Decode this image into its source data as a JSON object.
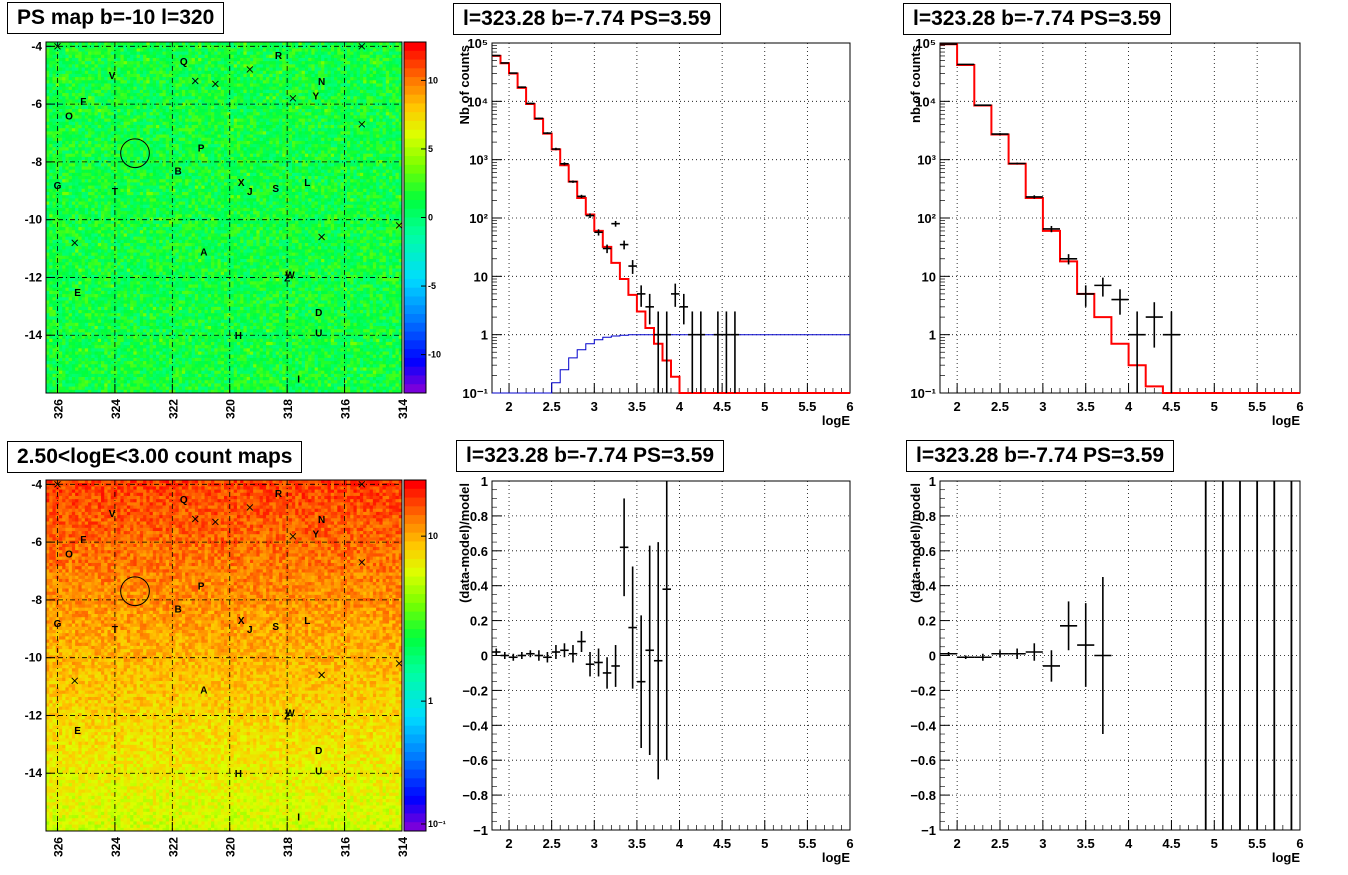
{
  "maps": [
    {
      "title": "PS map b=-10 l=320",
      "x_ticks": [
        "326",
        "324",
        "322",
        "320",
        "318",
        "316",
        "314"
      ],
      "y_ticks": [
        "-4",
        "-6",
        "-8",
        "-10",
        "-12",
        "-14"
      ],
      "colorbar_ticks": [
        "10",
        "5",
        "0",
        "-5",
        "-10"
      ],
      "colorscale": "linear",
      "gradient": "vertical-fade-none"
    },
    {
      "title": "2.50<logE<3.00 count maps",
      "x_ticks": [
        "326",
        "324",
        "322",
        "320",
        "318",
        "316",
        "314"
      ],
      "y_ticks": [
        "-4",
        "-6",
        "-8",
        "-10",
        "-12",
        "-14"
      ],
      "colorbar_ticks": [
        "10",
        "1",
        "10⁻¹"
      ],
      "colorscale": "log",
      "gradient": "counts-decreasing-with-latitude"
    }
  ],
  "sources": [
    {
      "label": "Q",
      "l": 321.6,
      "b": -4.5
    },
    {
      "label": "R",
      "l": 318.3,
      "b": -4.3
    },
    {
      "label": "V",
      "l": 324.1,
      "b": -5.0
    },
    {
      "label": "N",
      "l": 316.8,
      "b": -5.2
    },
    {
      "label": "F",
      "l": 325.1,
      "b": -5.9
    },
    {
      "label": "Y",
      "l": 317.0,
      "b": -5.7
    },
    {
      "label": "O",
      "l": 325.6,
      "b": -6.4
    },
    {
      "label": "P",
      "l": 321.0,
      "b": -7.5
    },
    {
      "label": "B",
      "l": 321.8,
      "b": -8.3
    },
    {
      "label": "X",
      "l": 319.6,
      "b": -8.7
    },
    {
      "label": "J",
      "l": 319.3,
      "b": -9.0
    },
    {
      "label": "S",
      "l": 318.4,
      "b": -8.9
    },
    {
      "label": "L",
      "l": 317.3,
      "b": -8.7
    },
    {
      "label": "G",
      "l": 326.0,
      "b": -8.8
    },
    {
      "label": "T",
      "l": 324.0,
      "b": -9.0
    },
    {
      "label": "A",
      "l": 320.9,
      "b": -11.1
    },
    {
      "label": "W",
      "l": 317.9,
      "b": -11.9
    },
    {
      "label": "Z",
      "l": 318.0,
      "b": -12.0
    },
    {
      "label": "E",
      "l": 325.3,
      "b": -12.5
    },
    {
      "label": "D",
      "l": 316.9,
      "b": -13.2
    },
    {
      "label": "H",
      "l": 319.7,
      "b": -14.0
    },
    {
      "label": "U",
      "l": 316.9,
      "b": -13.9
    },
    {
      "label": "I",
      "l": 317.6,
      "b": -15.5
    }
  ],
  "crosses": [
    {
      "l": 326.0,
      "b": -4.0
    },
    {
      "l": 315.4,
      "b": -4.0
    },
    {
      "l": 321.2,
      "b": -5.2
    },
    {
      "l": 320.5,
      "b": -5.3
    },
    {
      "l": 319.3,
      "b": -4.8
    },
    {
      "l": 317.8,
      "b": -5.8
    },
    {
      "l": 315.4,
      "b": -6.7
    },
    {
      "l": 314.1,
      "b": -10.2
    },
    {
      "l": 325.4,
      "b": -10.8
    },
    {
      "l": 316.8,
      "b": -10.6
    }
  ],
  "circle": {
    "l": 323.3,
    "b": -7.7,
    "r_deg": 0.5
  },
  "spectra": [
    {
      "title": "l=323.28 b=-7.74 PS=3.59",
      "ylabel": "Nb of counts",
      "xlabel": "logE",
      "x_ticks": [
        "2",
        "2.5",
        "3",
        "3.5",
        "4",
        "4.5",
        "5",
        "5.5",
        "6"
      ],
      "y_ticks": [
        "10⁻¹",
        "1",
        "10",
        "10²",
        "10³",
        "10⁴",
        "10⁵"
      ],
      "xlim": [
        1.8,
        6
      ],
      "ylim_log": [
        0.1,
        100000
      ],
      "bin_width": 0.1,
      "bin_start": 1.8,
      "model_red": [
        60000,
        45000,
        30000,
        17000,
        9000,
        5000,
        2800,
        1500,
        800,
        420,
        220,
        115,
        60,
        32,
        17,
        9,
        4.8,
        2.5,
        1.3,
        0.7,
        0.36,
        0.19,
        0.1,
        0.1,
        0.1,
        0.1,
        0.1,
        0.1,
        0.1,
        0.1,
        0.1,
        0.1,
        0.1,
        0.1,
        0.1,
        0.1,
        0.1,
        0.1,
        0.1,
        0.1,
        0.1,
        0.1
      ],
      "model_blue": [
        0.1,
        0.1,
        0.1,
        0.1,
        0.1,
        0.1,
        0.1,
        0.15,
        0.25,
        0.4,
        0.55,
        0.7,
        0.82,
        0.9,
        0.95,
        0.98,
        1,
        1,
        1,
        1,
        1,
        1,
        1,
        1,
        1,
        1,
        1,
        1,
        1,
        1,
        1,
        1,
        1,
        1,
        1,
        1,
        1,
        1,
        1,
        1,
        1,
        1
      ],
      "data": [
        {
          "x": 1.85,
          "y": 61000,
          "lo": 60000,
          "hi": 62000
        },
        {
          "x": 1.95,
          "y": 45500,
          "lo": 45000,
          "hi": 46000
        },
        {
          "x": 2.05,
          "y": 30500,
          "lo": 30000,
          "hi": 31000
        },
        {
          "x": 2.15,
          "y": 17500,
          "lo": 17000,
          "hi": 18000
        },
        {
          "x": 2.25,
          "y": 9200,
          "lo": 9000,
          "hi": 9400
        },
        {
          "x": 2.35,
          "y": 5100,
          "lo": 4950,
          "hi": 5250
        },
        {
          "x": 2.45,
          "y": 2850,
          "lo": 2750,
          "hi": 2950
        },
        {
          "x": 2.55,
          "y": 1520,
          "lo": 1450,
          "hi": 1600
        },
        {
          "x": 2.65,
          "y": 850,
          "lo": 800,
          "hi": 900
        },
        {
          "x": 2.75,
          "y": 420,
          "lo": 400,
          "hi": 440
        },
        {
          "x": 2.85,
          "y": 235,
          "lo": 220,
          "hi": 250
        },
        {
          "x": 2.95,
          "y": 110,
          "lo": 100,
          "hi": 120
        },
        {
          "x": 3.05,
          "y": 57,
          "lo": 50,
          "hi": 64
        },
        {
          "x": 3.15,
          "y": 30,
          "lo": 25,
          "hi": 35
        },
        {
          "x": 3.25,
          "y": 80,
          "lo": 71,
          "hi": 89
        },
        {
          "x": 3.35,
          "y": 35,
          "lo": 29,
          "hi": 41
        },
        {
          "x": 3.45,
          "y": 15,
          "lo": 11,
          "hi": 19
        },
        {
          "x": 3.55,
          "y": 5,
          "lo": 3,
          "hi": 7
        },
        {
          "x": 3.65,
          "y": 3,
          "lo": 1.5,
          "hi": 5
        },
        {
          "x": 3.75,
          "y": 1,
          "lo": 0.1,
          "hi": 2.5
        },
        {
          "x": 3.85,
          "y": 1,
          "lo": 0.1,
          "hi": 2.5
        },
        {
          "x": 3.95,
          "y": 5,
          "lo": 3,
          "hi": 7.5
        },
        {
          "x": 4.05,
          "y": 3,
          "lo": 1.5,
          "hi": 5
        },
        {
          "x": 4.15,
          "y": 1,
          "lo": 0.1,
          "hi": 2.5
        },
        {
          "x": 4.25,
          "y": 1,
          "lo": 0.1,
          "hi": 2.5
        },
        {
          "x": 4.45,
          "y": 1,
          "lo": 0.1,
          "hi": 2.5
        },
        {
          "x": 4.55,
          "y": 1,
          "lo": 0.1,
          "hi": 2.5
        },
        {
          "x": 4.65,
          "y": 1,
          "lo": 0.1,
          "hi": 2.5
        }
      ]
    },
    {
      "title": "l=323.28 b=-7.74 PS=3.59",
      "ylabel": "nb of counts",
      "xlabel": "logE",
      "x_ticks": [
        "2",
        "2.5",
        "3",
        "3.5",
        "4",
        "4.5",
        "5",
        "5.5",
        "6"
      ],
      "y_ticks": [
        "10⁻¹",
        "1",
        "10",
        "10²",
        "10³",
        "10⁴",
        "10⁵"
      ],
      "xlim": [
        1.8,
        6
      ],
      "ylim_log": [
        0.1,
        100000
      ],
      "bin_width": 0.2,
      "bin_start": 1.8,
      "model_red": [
        95000,
        42000,
        8500,
        2700,
        850,
        220,
        60,
        18,
        5,
        2,
        0.7,
        0.3,
        0.13,
        0.1,
        0.1,
        0.1,
        0.1,
        0.1,
        0.1,
        0.1,
        0.1
      ],
      "model_blue": [],
      "data": [
        {
          "x": 1.9,
          "y": 96000,
          "lo": 95000,
          "hi": 97000
        },
        {
          "x": 2.1,
          "y": 43000,
          "lo": 42500,
          "hi": 43500
        },
        {
          "x": 2.3,
          "y": 8600,
          "lo": 8400,
          "hi": 8800
        },
        {
          "x": 2.5,
          "y": 2750,
          "lo": 2650,
          "hi": 2850
        },
        {
          "x": 2.7,
          "y": 860,
          "lo": 830,
          "hi": 890
        },
        {
          "x": 2.9,
          "y": 230,
          "lo": 215,
          "hi": 245
        },
        {
          "x": 3.1,
          "y": 65,
          "lo": 57,
          "hi": 73
        },
        {
          "x": 3.3,
          "y": 20,
          "lo": 16,
          "hi": 24
        },
        {
          "x": 3.5,
          "y": 5,
          "lo": 3,
          "hi": 7
        },
        {
          "x": 3.7,
          "y": 7,
          "lo": 4.5,
          "hi": 9.5
        },
        {
          "x": 3.9,
          "y": 4,
          "lo": 2.2,
          "hi": 6
        },
        {
          "x": 4.1,
          "y": 1,
          "lo": 0.1,
          "hi": 2.5
        },
        {
          "x": 4.3,
          "y": 2,
          "lo": 0.6,
          "hi": 3.6
        },
        {
          "x": 4.5,
          "y": 1,
          "lo": 0.1,
          "hi": 2.5
        }
      ]
    }
  ],
  "residuals": [
    {
      "title": "l=323.28 b=-7.74 PS=3.59",
      "ylabel": "(data-model)/model",
      "xlabel": "logE",
      "x_ticks": [
        "2",
        "2.5",
        "3",
        "3.5",
        "4",
        "4.5",
        "5",
        "5.5",
        "6"
      ],
      "y_ticks": [
        "−1",
        "−0.8",
        "−0.6",
        "−0.4",
        "−0.2",
        "0",
        "0.2",
        "0.4",
        "0.6",
        "0.8",
        "1"
      ],
      "xlim": [
        1.8,
        6
      ],
      "ylim": [
        -1,
        1
      ],
      "half_bin": 0.05,
      "points": [
        {
          "x": 1.85,
          "y": 0.02,
          "e": 0.02
        },
        {
          "x": 1.95,
          "y": 0.0,
          "e": 0.02
        },
        {
          "x": 2.05,
          "y": -0.01,
          "e": 0.02
        },
        {
          "x": 2.15,
          "y": 0.0,
          "e": 0.02
        },
        {
          "x": 2.25,
          "y": 0.01,
          "e": 0.02
        },
        {
          "x": 2.35,
          "y": 0.0,
          "e": 0.03
        },
        {
          "x": 2.45,
          "y": -0.01,
          "e": 0.03
        },
        {
          "x": 2.55,
          "y": 0.02,
          "e": 0.04
        },
        {
          "x": 2.65,
          "y": 0.03,
          "e": 0.04
        },
        {
          "x": 2.75,
          "y": 0.01,
          "e": 0.05
        },
        {
          "x": 2.85,
          "y": 0.08,
          "e": 0.06
        },
        {
          "x": 2.95,
          "y": -0.05,
          "e": 0.07
        },
        {
          "x": 3.05,
          "y": -0.04,
          "e": 0.08
        },
        {
          "x": 3.15,
          "y": -0.1,
          "e": 0.09
        },
        {
          "x": 3.25,
          "y": -0.06,
          "e": 0.12
        },
        {
          "x": 3.35,
          "y": 0.62,
          "e": 0.28
        },
        {
          "x": 3.45,
          "y": 0.16,
          "e": 0.35
        },
        {
          "x": 3.55,
          "y": -0.15,
          "e": 0.38
        },
        {
          "x": 3.65,
          "y": 0.03,
          "e": 0.6
        },
        {
          "x": 3.75,
          "y": -0.03,
          "e": 0.68
        },
        {
          "x": 3.85,
          "y": 0.38,
          "e": 0.98
        }
      ]
    },
    {
      "title": "l=323.28 b=-7.74 PS=3.59",
      "ylabel": "(data-model)/model",
      "xlabel": "logE",
      "x_ticks": [
        "2",
        "2.5",
        "3",
        "3.5",
        "4",
        "4.5",
        "5",
        "5.5",
        "6"
      ],
      "y_ticks": [
        "−1",
        "−0.8",
        "−0.6",
        "−0.4",
        "−0.2",
        "0",
        "0.2",
        "0.4",
        "0.6",
        "0.8",
        "1"
      ],
      "xlim": [
        1.8,
        6
      ],
      "ylim": [
        -1,
        1
      ],
      "half_bin": 0.1,
      "points": [
        {
          "x": 1.9,
          "y": 0.01,
          "e": 0.01
        },
        {
          "x": 2.1,
          "y": -0.01,
          "e": 0.01
        },
        {
          "x": 2.3,
          "y": -0.01,
          "e": 0.02
        },
        {
          "x": 2.5,
          "y": 0.01,
          "e": 0.02
        },
        {
          "x": 2.7,
          "y": 0.01,
          "e": 0.03
        },
        {
          "x": 2.9,
          "y": 0.02,
          "e": 0.05
        },
        {
          "x": 3.1,
          "y": -0.06,
          "e": 0.09
        },
        {
          "x": 3.3,
          "y": 0.17,
          "e": 0.14
        },
        {
          "x": 3.5,
          "y": 0.06,
          "e": 0.24
        },
        {
          "x": 3.7,
          "y": 0.0,
          "e": 0.45
        }
      ],
      "full_range_bars_x": [
        4.9,
        5.1,
        5.3,
        5.5,
        5.7,
        5.9
      ]
    }
  ],
  "colors": {
    "model": "#ff0000",
    "secondary_model": "#0000cc",
    "data": "#000000",
    "grid": "#000000"
  }
}
